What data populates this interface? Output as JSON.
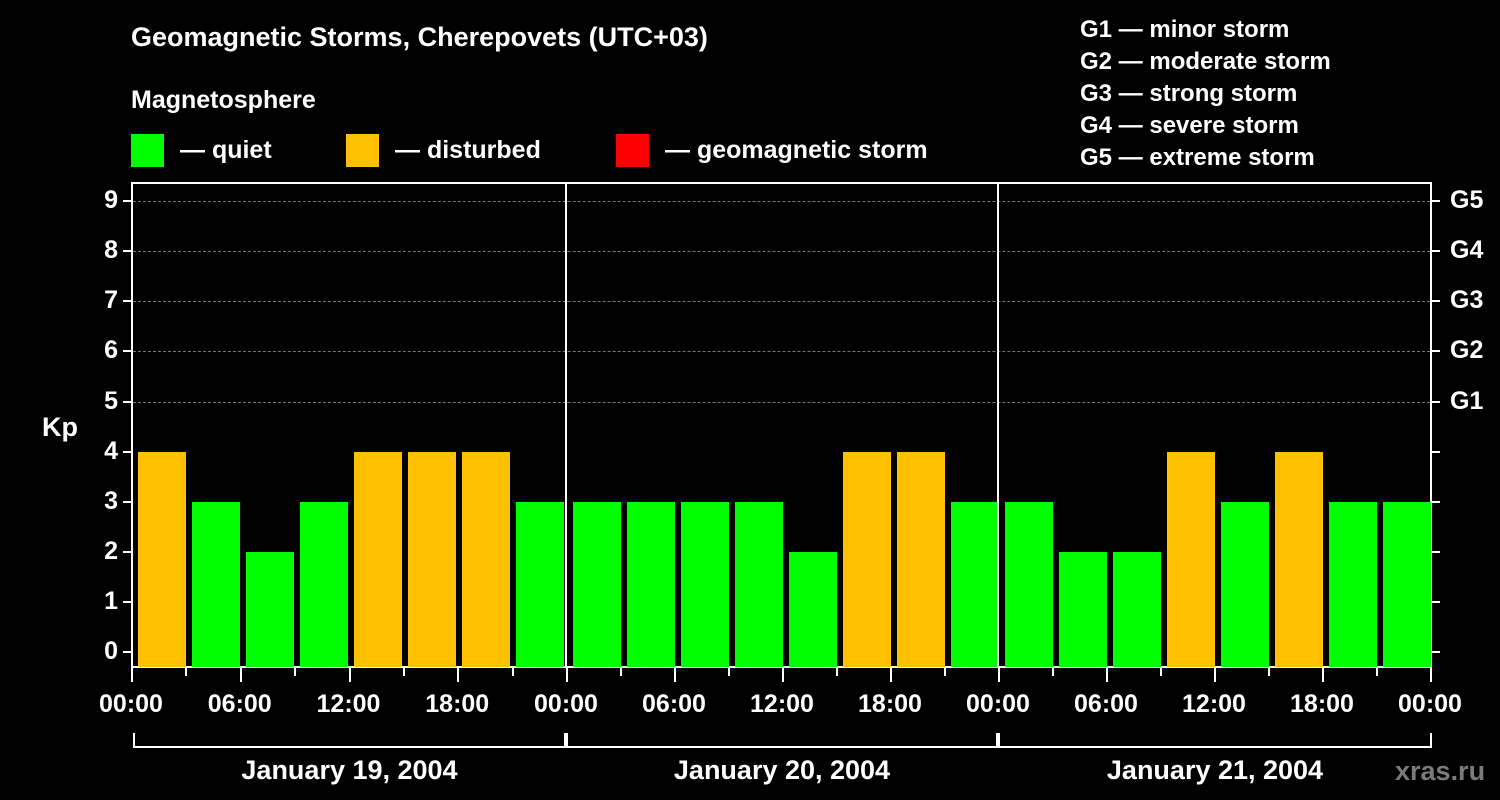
{
  "header": {
    "title": "Geomagnetic Storms, Cherepovets (UTC+03)",
    "subtitle": "Magnetosphere"
  },
  "legend": [
    {
      "label": "— quiet",
      "color": "#00ff00"
    },
    {
      "label": "— disturbed",
      "color": "#ffc000"
    },
    {
      "label": "— geomagnetic storm",
      "color": "#ff0000"
    }
  ],
  "storm_scale": [
    "G1 — minor storm",
    "G2 — moderate storm",
    "G3 — strong storm",
    "G4 — severe storm",
    "G5 — extreme storm"
  ],
  "watermark": "xras.ru",
  "chart_data": {
    "type": "bar",
    "title": "Geomagnetic Storms, Cherepovets (UTC+03)",
    "xlabel": "",
    "ylabel": "Kp",
    "ylim": [
      0,
      9
    ],
    "y_ticks": [
      "0",
      "1",
      "2",
      "3",
      "4",
      "5",
      "6",
      "7",
      "8",
      "9"
    ],
    "right_ticks": [
      {
        "kp": 5,
        "label": "G1"
      },
      {
        "kp": 6,
        "label": "G2"
      },
      {
        "kp": 7,
        "label": "G3"
      },
      {
        "kp": 8,
        "label": "G4"
      },
      {
        "kp": 9,
        "label": "G5"
      }
    ],
    "x_tick_labels": [
      "00:00",
      "06:00",
      "12:00",
      "18:00",
      "00:00",
      "06:00",
      "12:00",
      "18:00",
      "00:00",
      "06:00",
      "12:00",
      "18:00",
      "00:00"
    ],
    "days": [
      "January 19, 2004",
      "January 20, 2004",
      "January 21, 2004"
    ],
    "grid": "dashed horizontal at Kp 5-9",
    "categories": [
      "Jan 19 00-03",
      "Jan 19 03-06",
      "Jan 19 06-09",
      "Jan 19 09-12",
      "Jan 19 12-15",
      "Jan 19 15-18",
      "Jan 19 18-21",
      "Jan 19 21-24",
      "Jan 20 00-03",
      "Jan 20 03-06",
      "Jan 20 06-09",
      "Jan 20 09-12",
      "Jan 20 12-15",
      "Jan 20 15-18",
      "Jan 20 18-21",
      "Jan 20 21-24",
      "Jan 21 00-03",
      "Jan 21 03-06",
      "Jan 21 06-09",
      "Jan 21 09-12",
      "Jan 21 12-15",
      "Jan 21 15-18",
      "Jan 21 18-21",
      "Jan 21 21-24"
    ],
    "values": [
      4,
      3,
      2,
      3,
      4,
      4,
      4,
      3,
      3,
      3,
      3,
      3,
      2,
      4,
      4,
      3,
      3,
      2,
      2,
      4,
      3,
      4,
      3,
      3
    ],
    "status": [
      "disturbed",
      "quiet",
      "quiet",
      "quiet",
      "disturbed",
      "disturbed",
      "disturbed",
      "quiet",
      "quiet",
      "quiet",
      "quiet",
      "quiet",
      "quiet",
      "disturbed",
      "disturbed",
      "quiet",
      "quiet",
      "quiet",
      "quiet",
      "disturbed",
      "quiet",
      "disturbed",
      "quiet",
      "quiet"
    ],
    "colors": {
      "quiet": "#00ff00",
      "disturbed": "#ffc000",
      "storm": "#ff0000"
    }
  }
}
